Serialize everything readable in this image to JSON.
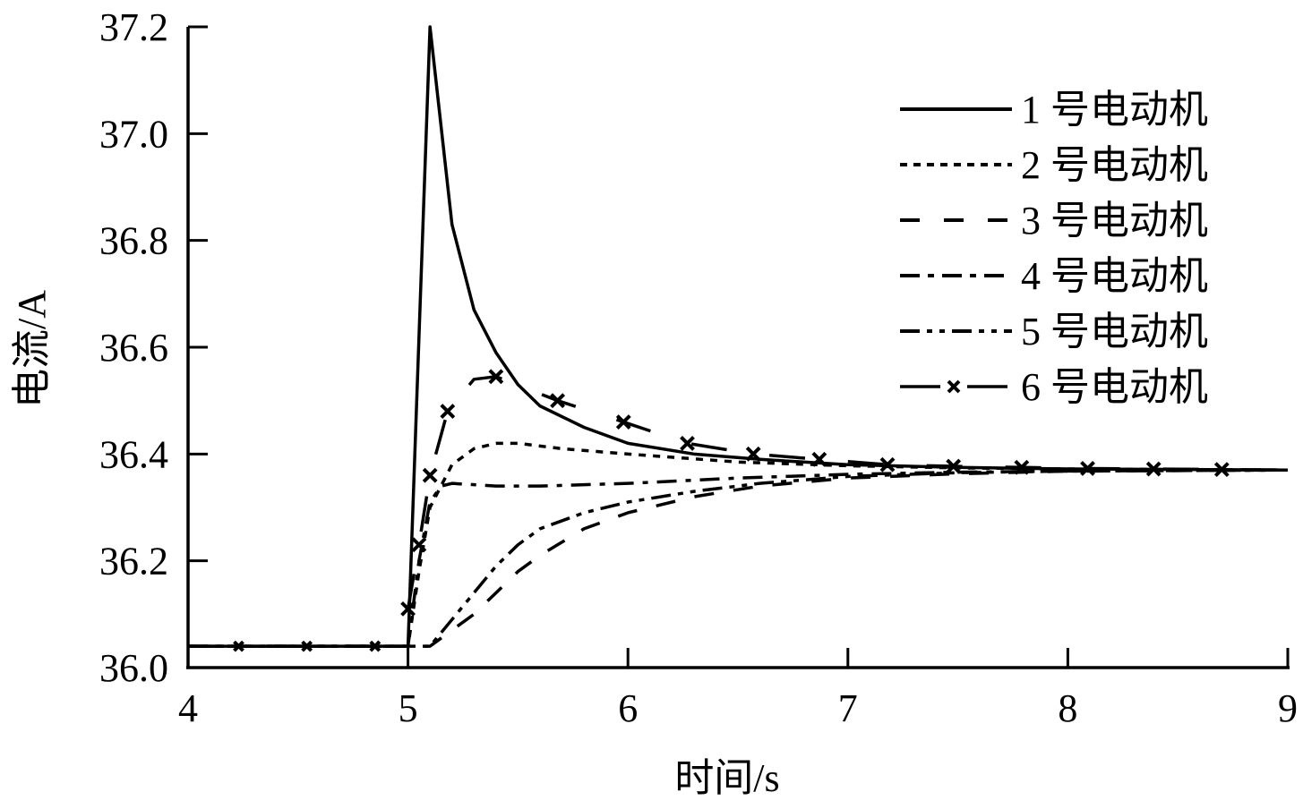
{
  "chart_data": {
    "type": "line",
    "title": "",
    "xlabel": "时间/s",
    "ylabel": "电流/A",
    "xlim": [
      4,
      9
    ],
    "ylim": [
      36.0,
      37.2
    ],
    "xticks": [
      "4",
      "5",
      "6",
      "7",
      "8",
      "9"
    ],
    "yticks": [
      "36.0",
      "36.2",
      "36.4",
      "36.6",
      "36.8",
      "37.0",
      "37.2"
    ],
    "grid": false,
    "legend_position": "upper right",
    "series": [
      {
        "name": "1 号电动机",
        "style": "solid",
        "x": [
          4.0,
          5.0,
          5.1,
          5.2,
          5.3,
          5.4,
          5.5,
          5.6,
          5.8,
          6.0,
          6.3,
          6.6,
          7.0,
          7.5,
          8.0,
          9.0
        ],
        "y": [
          36.04,
          36.04,
          37.2,
          36.83,
          36.67,
          36.59,
          36.53,
          36.49,
          36.45,
          36.42,
          36.4,
          36.39,
          36.38,
          36.375,
          36.372,
          36.37
        ]
      },
      {
        "name": "2 号电动机",
        "style": "dotted",
        "x": [
          4.0,
          5.0,
          5.05,
          5.1,
          5.2,
          5.3,
          5.4,
          5.5,
          5.7,
          6.0,
          6.5,
          7.0,
          7.5,
          8.0,
          9.0
        ],
        "y": [
          36.04,
          36.04,
          36.18,
          36.3,
          36.38,
          36.41,
          36.42,
          36.42,
          36.41,
          36.4,
          36.385,
          36.378,
          36.374,
          36.372,
          36.37
        ]
      },
      {
        "name": "3 号电动机",
        "style": "dashed",
        "x": [
          4.0,
          5.1,
          5.2,
          5.3,
          5.4,
          5.5,
          5.6,
          5.8,
          6.0,
          6.3,
          6.6,
          7.0,
          7.5,
          8.0,
          9.0
        ],
        "y": [
          36.04,
          36.04,
          36.07,
          36.1,
          36.14,
          36.18,
          36.21,
          36.26,
          36.29,
          36.32,
          36.34,
          36.355,
          36.363,
          36.368,
          36.37
        ]
      },
      {
        "name": "4 号电动机",
        "style": "dash-dot",
        "x": [
          4.0,
          5.0,
          5.05,
          5.1,
          5.15,
          5.2,
          5.4,
          5.6,
          6.0,
          6.5,
          7.0,
          7.5,
          8.0,
          9.0
        ],
        "y": [
          36.04,
          36.04,
          36.2,
          36.31,
          36.34,
          36.345,
          36.34,
          36.34,
          36.345,
          36.355,
          36.362,
          36.366,
          36.368,
          36.37
        ]
      },
      {
        "name": "5 号电动机",
        "style": "dash-dot-dot",
        "x": [
          4.0,
          5.1,
          5.2,
          5.3,
          5.4,
          5.5,
          5.6,
          5.8,
          6.0,
          6.3,
          6.6,
          7.0,
          7.5,
          8.0,
          9.0
        ],
        "y": [
          36.04,
          36.04,
          36.09,
          36.14,
          36.19,
          36.23,
          36.26,
          36.29,
          36.31,
          36.33,
          36.345,
          36.358,
          36.365,
          36.368,
          36.37
        ]
      },
      {
        "name": "6 号电动机",
        "style": "long-dash with x markers",
        "x": [
          4.0,
          4.23,
          4.54,
          4.85,
          5.0,
          5.05,
          5.1,
          5.18,
          5.3,
          5.4,
          5.68,
          5.98,
          6.27,
          6.57,
          6.87,
          7.18,
          7.48,
          7.79,
          8.09,
          8.39,
          8.7,
          9.0
        ],
        "y": [
          36.04,
          36.04,
          36.04,
          36.04,
          36.11,
          36.23,
          36.36,
          36.48,
          36.54,
          36.545,
          36.5,
          36.46,
          36.42,
          36.4,
          36.39,
          36.38,
          36.377,
          36.375,
          36.373,
          36.372,
          36.371,
          36.37
        ],
        "markers_x": [
          4.23,
          4.54,
          4.85,
          5.0,
          5.05,
          5.1,
          5.18,
          5.4,
          5.68,
          5.98,
          6.27,
          6.57,
          6.87,
          7.18,
          7.48,
          7.79,
          8.09,
          8.39,
          8.7
        ]
      }
    ]
  },
  "legend": {
    "items": [
      {
        "label": "1 号电动机"
      },
      {
        "label": "2 号电动机"
      },
      {
        "label": "3 号电动机"
      },
      {
        "label": "4 号电动机"
      },
      {
        "label": "5 号电动机"
      },
      {
        "label": "6 号电动机"
      }
    ]
  },
  "colors": {
    "line": "#000000",
    "background": "#ffffff"
  }
}
